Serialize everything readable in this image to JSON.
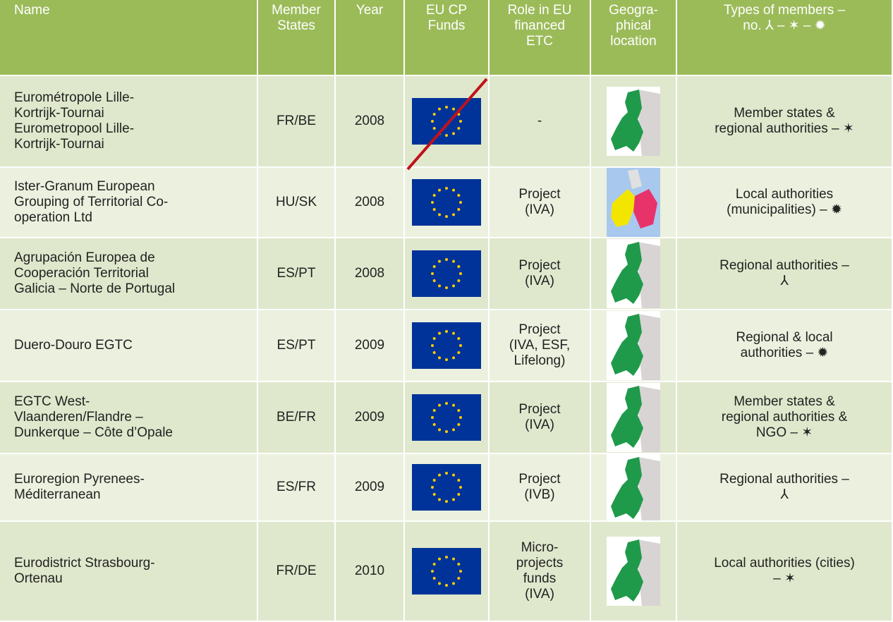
{
  "table": {
    "header": [
      [
        "Name"
      ],
      [
        "Member",
        "States"
      ],
      [
        "Year"
      ],
      [
        "EU CP",
        "Funds"
      ],
      [
        "Role in EU",
        "financed",
        "ETC"
      ],
      [
        "Geogra-",
        "phical",
        "location"
      ],
      [
        "Types of members –",
        "no. ⅄ – ✶ – ✹"
      ]
    ],
    "rows": [
      {
        "name": [
          "Eurométropole Lille-",
          "Kortrijk-Tournai",
          "Eurometropool Lille-",
          "Kortrijk-Tournai"
        ],
        "states": "FR/BE",
        "year": 2008,
        "role": [
          "-"
        ],
        "types": [
          "Member states &",
          "regional authorities – ✶"
        ]
      },
      {
        "name": [
          "Ister-Granum European",
          "Grouping of Territorial Co-",
          "operation Ltd"
        ],
        "states": "HU/SK",
        "year": 2008,
        "role": [
          "Project",
          "(IVA)"
        ],
        "types": [
          "Local authorities",
          "(municipalities) – ✹"
        ]
      },
      {
        "name": [
          "Agrupación Europea de",
          "Cooperación Territorial",
          "Galicia – Norte de Portugal"
        ],
        "states": "ES/PT",
        "year": 2008,
        "role": [
          "Project",
          "(IVA)"
        ],
        "types": [
          "Regional authorities –",
          "⅄"
        ]
      },
      {
        "name": [
          "Duero-Douro EGTC"
        ],
        "states": "ES/PT",
        "year": 2009,
        "role": [
          "Project",
          "(IVA, ESF,",
          "Lifelong)"
        ],
        "types": [
          "Regional & local",
          "authorities – ✹"
        ]
      },
      {
        "name": [
          "EGTC West-",
          "Vlaanderen/Flandre –",
          "Dunkerque – Côte d’Opale"
        ],
        "states": "BE/FR",
        "year": 2009,
        "role": [
          "Project",
          "(IVA)"
        ],
        "types": [
          "Member states &",
          "regional authorities &",
          "NGO – ✶"
        ]
      },
      {
        "name": [
          "Euroregion Pyrenees-",
          "Méditerranean"
        ],
        "states": "ES/FR",
        "year": 2009,
        "role": [
          "Project",
          "(IVB)"
        ],
        "types": [
          "Regional authorities –",
          "⅄"
        ]
      },
      {
        "name": [
          "Eurodistrict Strasbourg-",
          "Ortenau"
        ],
        "states": "FR/DE",
        "year": 2010,
        "role": [
          "Micro-",
          "projects",
          "funds",
          "(IVA)"
        ],
        "types": [
          "Local authorities (cities)",
          "– ✶"
        ]
      }
    ]
  }
}
